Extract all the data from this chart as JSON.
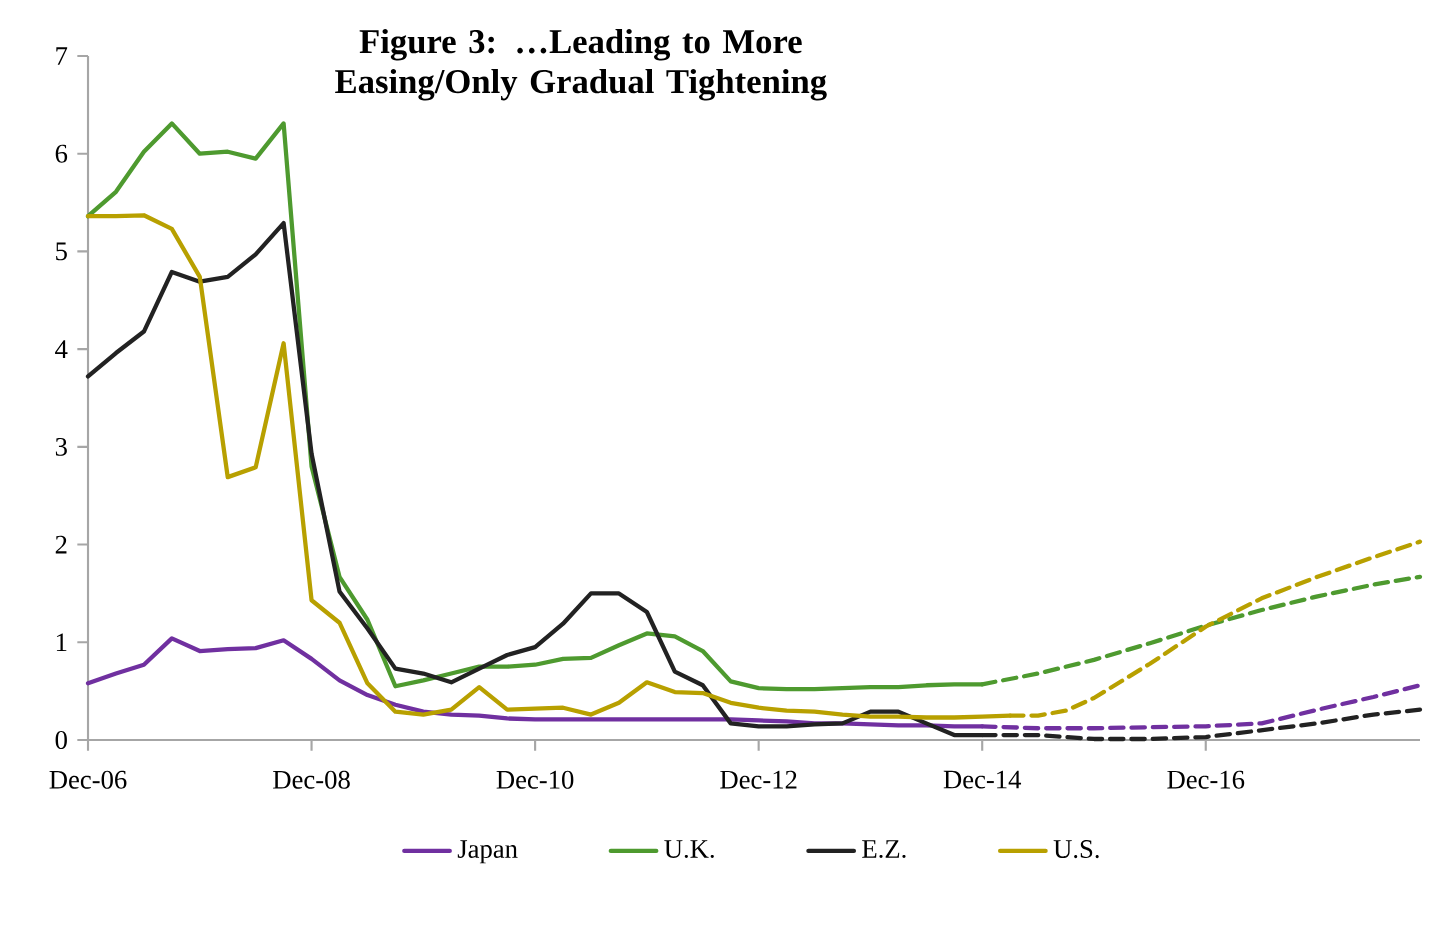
{
  "chart_data": {
    "type": "line",
    "title": "Figure 3: …Leading to More Easing/Only Gradual Tightening",
    "xlim": [
      "2006-12",
      "2018-11"
    ],
    "ylim": [
      0,
      7
    ],
    "yticks": [
      0,
      1,
      2,
      3,
      4,
      5,
      6,
      7
    ],
    "xticks": [
      {
        "value": "2006-12",
        "label": "Dec-06"
      },
      {
        "value": "2008-12",
        "label": "Dec-08"
      },
      {
        "value": "2010-12",
        "label": "Dec-10"
      },
      {
        "value": "2012-12",
        "label": "Dec-12"
      },
      {
        "value": "2014-12",
        "label": "Dec-14"
      },
      {
        "value": "2016-12",
        "label": "Dec-16"
      }
    ],
    "legend": "bottom",
    "line_style": "solid",
    "series": [
      {
        "name": "Japan",
        "color": "#7030a0",
        "x": [
          "2006-12",
          "2007-03",
          "2007-06",
          "2007-09",
          "2007-12",
          "2008-03",
          "2008-06",
          "2008-09",
          "2008-12",
          "2009-03",
          "2009-06",
          "2009-09",
          "2009-12",
          "2010-03",
          "2010-06",
          "2010-09",
          "2010-12",
          "2011-03",
          "2011-06",
          "2011-09",
          "2011-12",
          "2012-03",
          "2012-06",
          "2012-09",
          "2012-12",
          "2013-03",
          "2013-06",
          "2013-09",
          "2013-12",
          "2014-03",
          "2014-06",
          "2014-09",
          "2014-12"
        ],
        "values": [
          0.58,
          0.68,
          0.77,
          1.04,
          0.91,
          0.93,
          0.94,
          1.02,
          0.83,
          0.61,
          0.46,
          0.36,
          0.29,
          0.26,
          0.25,
          0.22,
          0.21,
          0.21,
          0.21,
          0.21,
          0.21,
          0.21,
          0.21,
          0.21,
          0.2,
          0.19,
          0.17,
          0.17,
          0.16,
          0.15,
          0.15,
          0.14,
          0.14
        ]
      },
      {
        "color": "#7030a0",
        "line_style": "dashed",
        "x": [
          "2014-12",
          "2015-06",
          "2015-12",
          "2016-06",
          "2016-12",
          "2017-06",
          "2017-12",
          "2018-06",
          "2018-11"
        ],
        "values": [
          0.14,
          0.12,
          0.12,
          0.13,
          0.14,
          0.17,
          0.31,
          0.44,
          0.56
        ]
      },
      {
        "name": "U.K.",
        "color": "#4e9a2f",
        "x": [
          "2006-12",
          "2007-03",
          "2007-06",
          "2007-09",
          "2007-12",
          "2008-03",
          "2008-06",
          "2008-09",
          "2008-12",
          "2009-03",
          "2009-06",
          "2009-09",
          "2009-12",
          "2010-03",
          "2010-06",
          "2010-09",
          "2010-12",
          "2011-03",
          "2011-06",
          "2011-09",
          "2011-12",
          "2012-03",
          "2012-06",
          "2012-09",
          "2012-12",
          "2013-03",
          "2013-06",
          "2013-09",
          "2013-12",
          "2014-03",
          "2014-06",
          "2014-09",
          "2014-12"
        ],
        "values": [
          5.36,
          5.61,
          6.02,
          6.31,
          6.0,
          6.02,
          5.95,
          6.31,
          2.8,
          1.67,
          1.23,
          0.55,
          0.61,
          0.68,
          0.75,
          0.75,
          0.77,
          0.83,
          0.84,
          0.97,
          1.09,
          1.06,
          0.91,
          0.6,
          0.53,
          0.52,
          0.52,
          0.53,
          0.54,
          0.54,
          0.56,
          0.57,
          0.57
        ]
      },
      {
        "color": "#4e9a2f",
        "line_style": "dashed",
        "x": [
          "2014-12",
          "2015-06",
          "2015-12",
          "2016-06",
          "2016-12",
          "2017-06",
          "2017-12",
          "2018-06",
          "2018-11"
        ],
        "values": [
          0.57,
          0.68,
          0.82,
          0.99,
          1.17,
          1.33,
          1.47,
          1.59,
          1.67
        ]
      },
      {
        "name": "E.Z.",
        "color": "#222222",
        "x": [
          "2006-12",
          "2007-03",
          "2007-06",
          "2007-09",
          "2007-12",
          "2008-03",
          "2008-06",
          "2008-09",
          "2008-12",
          "2009-03",
          "2009-06",
          "2009-09",
          "2009-12",
          "2010-03",
          "2010-06",
          "2010-09",
          "2010-12",
          "2011-03",
          "2011-06",
          "2011-09",
          "2011-12",
          "2012-03",
          "2012-06",
          "2012-09",
          "2012-12",
          "2013-03",
          "2013-06",
          "2013-09",
          "2013-12",
          "2014-03",
          "2014-06",
          "2014-09",
          "2014-12"
        ],
        "values": [
          3.72,
          3.96,
          4.18,
          4.79,
          4.69,
          4.74,
          4.97,
          5.29,
          2.93,
          1.52,
          1.14,
          0.73,
          0.68,
          0.59,
          0.73,
          0.87,
          0.95,
          1.19,
          1.5,
          1.5,
          1.31,
          0.7,
          0.56,
          0.17,
          0.14,
          0.14,
          0.16,
          0.17,
          0.29,
          0.29,
          0.17,
          0.05,
          0.05
        ]
      },
      {
        "color": "#222222",
        "line_style": "dashed",
        "x": [
          "2014-12",
          "2015-06",
          "2015-12",
          "2016-06",
          "2016-12",
          "2017-06",
          "2017-12",
          "2018-06",
          "2018-11"
        ],
        "values": [
          0.05,
          0.05,
          0.01,
          0.01,
          0.03,
          0.1,
          0.17,
          0.26,
          0.31
        ]
      },
      {
        "name": "U.S.",
        "color": "#b8a000",
        "x": [
          "2006-12",
          "2007-03",
          "2007-06",
          "2007-09",
          "2007-12",
          "2008-03",
          "2008-06",
          "2008-09",
          "2008-12",
          "2009-03",
          "2009-06",
          "2009-09",
          "2009-12",
          "2010-03",
          "2010-06",
          "2010-09",
          "2010-12",
          "2011-03",
          "2011-06",
          "2011-09",
          "2011-12",
          "2012-03",
          "2012-06",
          "2012-09",
          "2012-12",
          "2013-03",
          "2013-06",
          "2013-09",
          "2013-12",
          "2014-03",
          "2014-06",
          "2014-09",
          "2014-12",
          "2015-03"
        ],
        "values": [
          5.36,
          5.36,
          5.37,
          5.23,
          4.74,
          2.69,
          2.79,
          4.06,
          1.43,
          1.2,
          0.58,
          0.29,
          0.26,
          0.31,
          0.54,
          0.31,
          0.32,
          0.33,
          0.26,
          0.38,
          0.59,
          0.49,
          0.48,
          0.38,
          0.33,
          0.3,
          0.29,
          0.26,
          0.24,
          0.24,
          0.23,
          0.23,
          0.24,
          0.25
        ]
      },
      {
        "color": "#b8a000",
        "line_style": "dashed",
        "x": [
          "2015-03",
          "2015-06",
          "2015-09",
          "2015-12",
          "2016-06",
          "2016-12",
          "2017-06",
          "2017-12",
          "2018-06",
          "2018-11"
        ],
        "values": [
          0.25,
          0.25,
          0.3,
          0.43,
          0.78,
          1.16,
          1.45,
          1.67,
          1.87,
          2.03
        ]
      }
    ]
  }
}
